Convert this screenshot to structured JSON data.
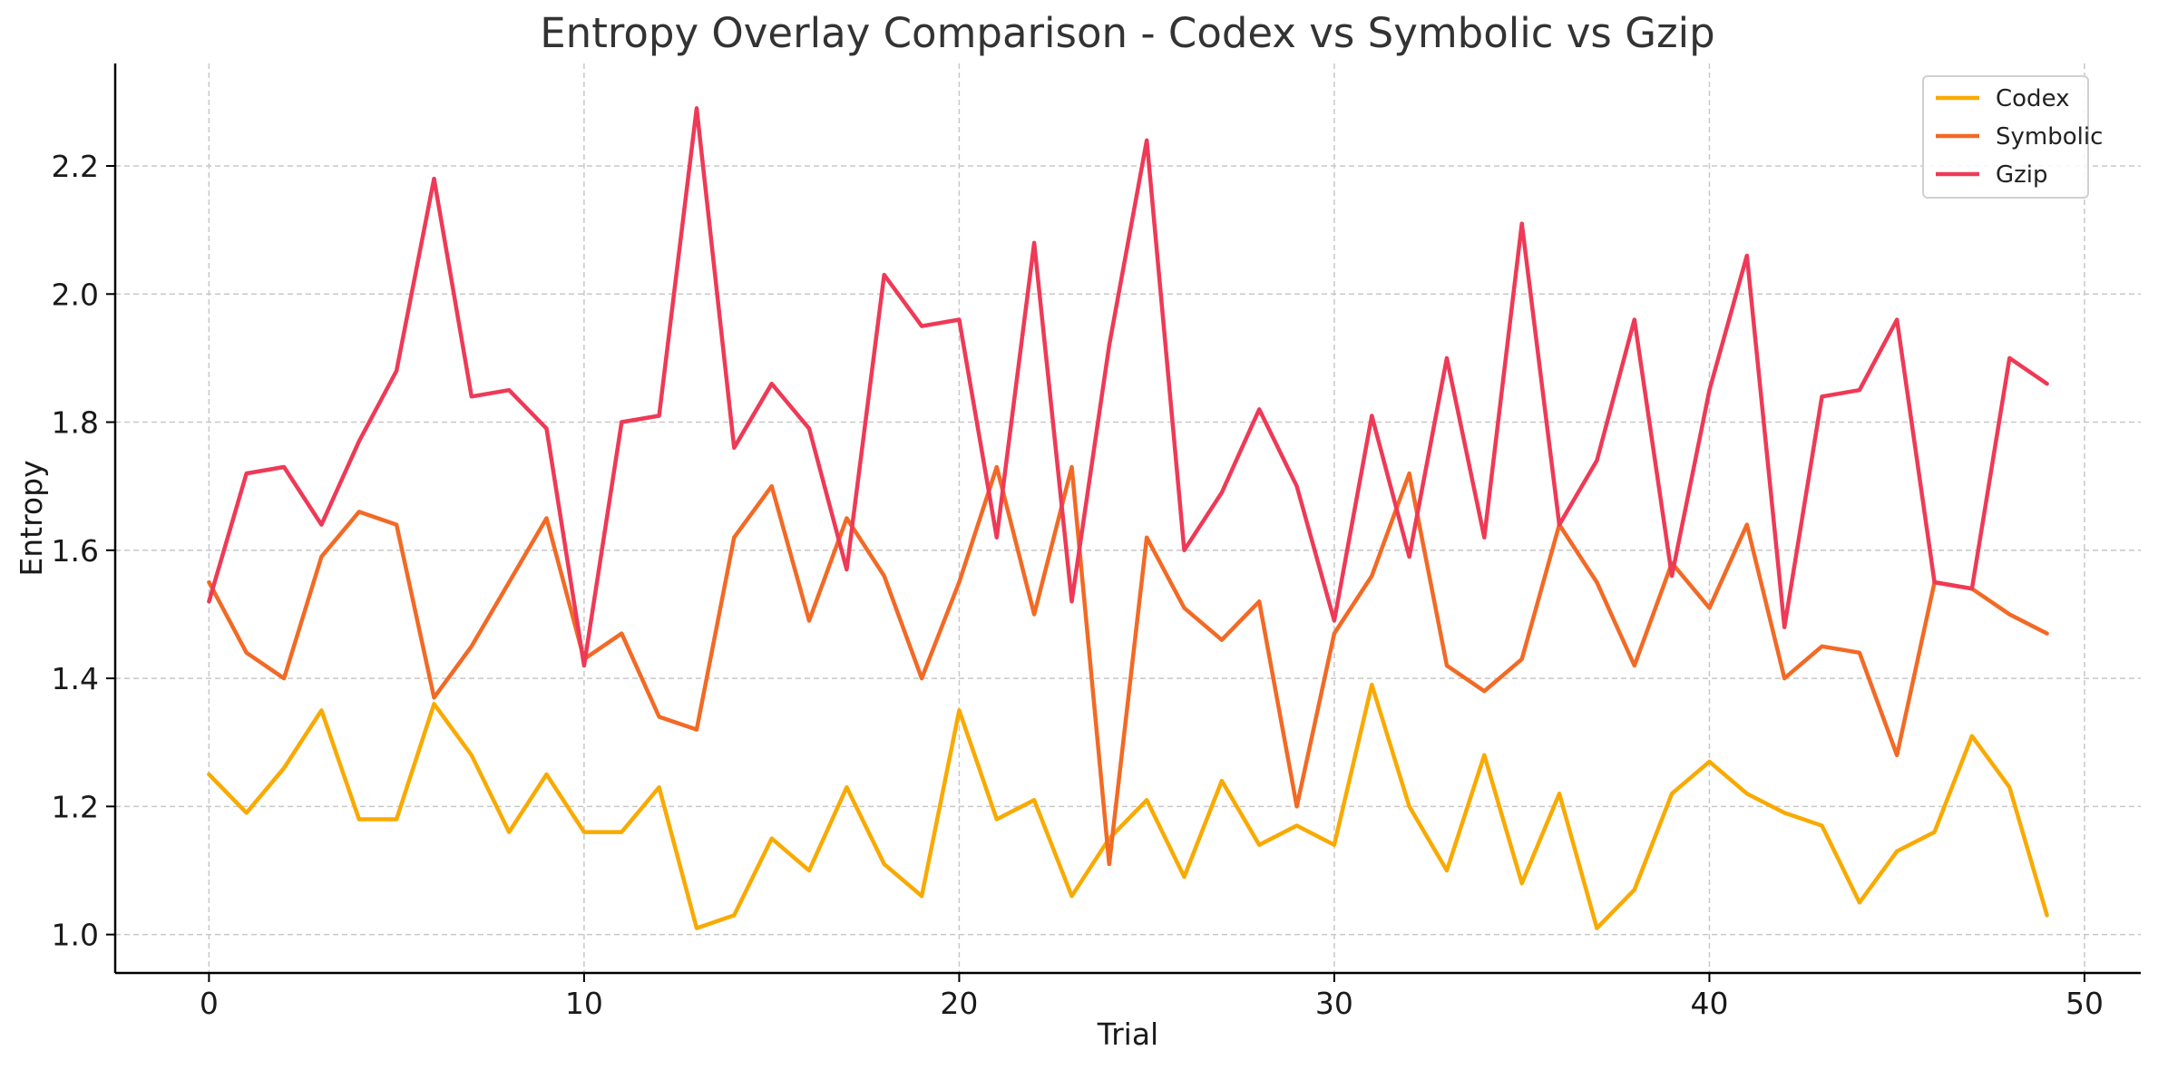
{
  "chart_data": {
    "type": "line",
    "title": "Entropy Overlay Comparison - Codex vs Symbolic vs Gzip",
    "xlabel": "Trial",
    "ylabel": "Entropy",
    "xlim": [
      -2.5,
      51.5
    ],
    "ylim": [
      0.94,
      2.36
    ],
    "xticks": [
      0,
      10,
      20,
      30,
      40,
      50
    ],
    "yticks": [
      1.0,
      1.2,
      1.4,
      1.6,
      1.8,
      2.0,
      2.2
    ],
    "xtick_labels": [
      "0",
      "10",
      "20",
      "30",
      "40",
      "50"
    ],
    "ytick_labels": [
      "1.0",
      "1.2",
      "1.4",
      "1.6",
      "1.8",
      "2.0",
      "2.2"
    ],
    "grid": true,
    "legend_position": "top-right",
    "x": [
      0,
      1,
      2,
      3,
      4,
      5,
      6,
      7,
      8,
      9,
      10,
      11,
      12,
      13,
      14,
      15,
      16,
      17,
      18,
      19,
      20,
      21,
      22,
      23,
      24,
      25,
      26,
      27,
      28,
      29,
      30,
      31,
      32,
      33,
      34,
      35,
      36,
      37,
      38,
      39,
      40,
      41,
      42,
      43,
      44,
      45,
      46,
      47,
      48,
      49
    ],
    "series": [
      {
        "name": "Codex",
        "color": "#F9AA00",
        "values": [
          1.25,
          1.19,
          1.26,
          1.35,
          1.18,
          1.18,
          1.36,
          1.28,
          1.16,
          1.25,
          1.16,
          1.16,
          1.23,
          1.01,
          1.03,
          1.15,
          1.1,
          1.23,
          1.11,
          1.06,
          1.35,
          1.18,
          1.21,
          1.06,
          1.15,
          1.21,
          1.09,
          1.24,
          1.14,
          1.17,
          1.14,
          1.39,
          1.2,
          1.1,
          1.28,
          1.08,
          1.22,
          1.01,
          1.07,
          1.22,
          1.27,
          1.22,
          1.19,
          1.17,
          1.05,
          1.13,
          1.16,
          1.31,
          1.23,
          1.03
        ]
      },
      {
        "name": "Symbolic",
        "color": "#F26A25",
        "values": [
          1.55,
          1.44,
          1.4,
          1.59,
          1.66,
          1.64,
          1.37,
          1.45,
          1.55,
          1.65,
          1.43,
          1.47,
          1.34,
          1.32,
          1.62,
          1.7,
          1.49,
          1.65,
          1.56,
          1.4,
          1.55,
          1.73,
          1.5,
          1.73,
          1.11,
          1.62,
          1.51,
          1.46,
          1.52,
          1.2,
          1.47,
          1.56,
          1.72,
          1.42,
          1.38,
          1.43,
          1.64,
          1.55,
          1.42,
          1.58,
          1.51,
          1.64,
          1.4,
          1.45,
          1.44,
          1.28,
          1.55,
          1.54,
          1.5,
          1.47
        ]
      },
      {
        "name": "Gzip",
        "color": "#EE3A57",
        "values": [
          1.52,
          1.72,
          1.73,
          1.64,
          1.77,
          1.88,
          2.18,
          1.84,
          1.85,
          1.79,
          1.42,
          1.8,
          1.81,
          2.29,
          1.76,
          1.86,
          1.79,
          1.57,
          2.03,
          1.95,
          1.96,
          1.62,
          2.08,
          1.52,
          1.92,
          2.24,
          1.6,
          1.69,
          1.82,
          1.7,
          1.49,
          1.81,
          1.59,
          1.9,
          1.62,
          2.11,
          1.64,
          1.74,
          1.96,
          1.56,
          1.85,
          2.06,
          1.48,
          1.84,
          1.85,
          1.96,
          1.55,
          1.54,
          1.9,
          1.86
        ]
      }
    ]
  }
}
